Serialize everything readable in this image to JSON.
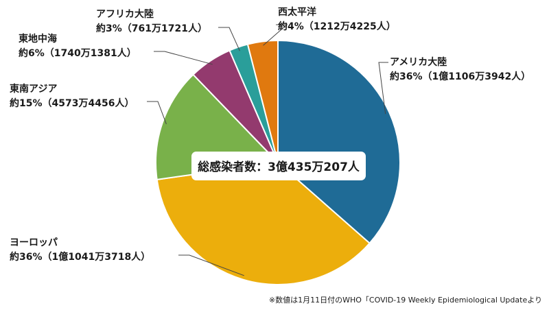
{
  "chart_data": {
    "type": "pie",
    "slices": [
      {
        "name": "アメリカ大陸",
        "detail": "約36%（1億1106万3942人）",
        "value": 111063942,
        "color": "#1f6b96"
      },
      {
        "name": "ヨーロッパ",
        "detail": "約36%（1億1041万3718人）",
        "value": 110413718,
        "color": "#ecae0c"
      },
      {
        "name": "東南アジア",
        "detail": "約15%（4573万4456人）",
        "value": 45734456,
        "color": "#79b14a"
      },
      {
        "name": "東地中海",
        "detail": "約6%（1740万1381人）",
        "value": 17401381,
        "color": "#933a6e"
      },
      {
        "name": "アフリカ大陸",
        "detail": "約3%（761万1721人）",
        "value": 7611721,
        "color": "#2a9e9a"
      },
      {
        "name": "西太平洋",
        "detail": "約4%（1212万4225人）",
        "value": 12124225,
        "color": "#e0790f"
      }
    ]
  },
  "center_label": "総感染者数：3億435万207人",
  "source_note": "※数値は1月11日付のWHO「COVID-19 Weekly Epidemiological Updateより"
}
